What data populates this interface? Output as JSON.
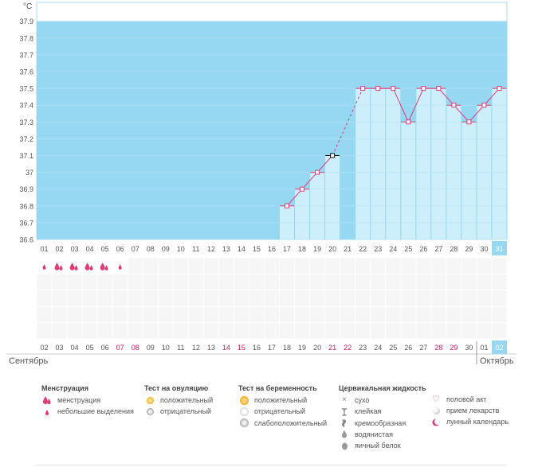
{
  "chart_data": {
    "type": "line",
    "title": "",
    "ylabel": "°C",
    "xlabel": "",
    "ylim": [
      36.6,
      38.0
    ],
    "y_ticks": [
      "37.9",
      "37.8",
      "37.7",
      "37.6",
      "37.5",
      "37.4",
      "37.3",
      "37.2",
      "37.1",
      "37",
      "36.9",
      "36.8",
      "36.7",
      "36.6"
    ],
    "cycle_days": [
      "01",
      "02",
      "03",
      "04",
      "05",
      "06",
      "07",
      "08",
      "09",
      "10",
      "11",
      "12",
      "13",
      "14",
      "15",
      "16",
      "17",
      "18",
      "19",
      "20",
      "21",
      "22",
      "23",
      "24",
      "25",
      "26",
      "27",
      "28",
      "29",
      "30",
      "31"
    ],
    "highlight_day": 31,
    "temperatures": [
      {
        "day": 17,
        "value": 36.8
      },
      {
        "day": 18,
        "value": 36.9
      },
      {
        "day": 19,
        "value": 37.0
      },
      {
        "day": 20,
        "value": 37.1
      },
      {
        "day": 22,
        "value": 37.5
      },
      {
        "day": 23,
        "value": 37.5
      },
      {
        "day": 24,
        "value": 37.5
      },
      {
        "day": 25,
        "value": 37.3
      },
      {
        "day": 26,
        "value": 37.5
      },
      {
        "day": 27,
        "value": 37.5
      },
      {
        "day": 28,
        "value": 37.4
      },
      {
        "day": 29,
        "value": 37.3
      },
      {
        "day": 30,
        "value": 37.4
      },
      {
        "day": 31,
        "value": 37.5
      }
    ],
    "marked_point_day": 20,
    "dashed_segment": [
      20,
      22
    ],
    "menstruation": [
      {
        "day": 1,
        "type": "light"
      },
      {
        "day": 2,
        "type": "heavy"
      },
      {
        "day": 3,
        "type": "heavy"
      },
      {
        "day": 4,
        "type": "heavy"
      },
      {
        "day": 5,
        "type": "heavy"
      },
      {
        "day": 6,
        "type": "light"
      }
    ],
    "calendar_dates": [
      {
        "d": "02",
        "weekend": false
      },
      {
        "d": "03",
        "weekend": false
      },
      {
        "d": "04",
        "weekend": false
      },
      {
        "d": "05",
        "weekend": false
      },
      {
        "d": "06",
        "weekend": false
      },
      {
        "d": "07",
        "weekend": true
      },
      {
        "d": "08",
        "weekend": true
      },
      {
        "d": "09",
        "weekend": false
      },
      {
        "d": "10",
        "weekend": false
      },
      {
        "d": "11",
        "weekend": false
      },
      {
        "d": "12",
        "weekend": false
      },
      {
        "d": "13",
        "weekend": false
      },
      {
        "d": "14",
        "weekend": true
      },
      {
        "d": "15",
        "weekend": true
      },
      {
        "d": "16",
        "weekend": false
      },
      {
        "d": "17",
        "weekend": false
      },
      {
        "d": "18",
        "weekend": false
      },
      {
        "d": "19",
        "weekend": false
      },
      {
        "d": "20",
        "weekend": false
      },
      {
        "d": "21",
        "weekend": true
      },
      {
        "d": "22",
        "weekend": true
      },
      {
        "d": "23",
        "weekend": false
      },
      {
        "d": "24",
        "weekend": false
      },
      {
        "d": "25",
        "weekend": false
      },
      {
        "d": "26",
        "weekend": false
      },
      {
        "d": "27",
        "weekend": false
      },
      {
        "d": "28",
        "weekend": true
      },
      {
        "d": "29",
        "weekend": true
      },
      {
        "d": "30",
        "weekend": false
      },
      {
        "d": "01",
        "weekend": false
      },
      {
        "d": "02",
        "weekend": false
      }
    ],
    "month_start": "Сентябрь",
    "month_end": "Октябрь"
  },
  "colors": {
    "background_blue": "#96d7f2",
    "bar_fill": "#cdeefb",
    "line": "#e03a78",
    "weekend_text": "#d4145a",
    "highlight_cell": "#96d7f2"
  },
  "legend": {
    "menstruation": {
      "title": "Менструация",
      "items": [
        {
          "icon": "drops-heavy-icon",
          "label": "менструация"
        },
        {
          "icon": "drop-light-icon",
          "label": "небольшие выделения"
        }
      ]
    },
    "ovulation": {
      "title": "Тест на овуляцию",
      "items": [
        {
          "icon": "positive-test-icon",
          "label": "положительный"
        },
        {
          "icon": "negative-test-icon",
          "label": "отрицательный"
        }
      ]
    },
    "pregnancy": {
      "title": "Тест на беременность",
      "items": [
        {
          "icon": "positive-test-icon",
          "label": "положительный"
        },
        {
          "icon": "negative-test-icon",
          "label": "отрицательный"
        },
        {
          "icon": "weak-positive-icon",
          "label": "слабоположительный"
        }
      ]
    },
    "cervical": {
      "title": "Цервикальная жидкость",
      "items": [
        {
          "icon": "dry-icon",
          "label": "сухо"
        },
        {
          "icon": "sticky-icon",
          "label": "клейкая"
        },
        {
          "icon": "creamy-icon",
          "label": "кремообразная"
        },
        {
          "icon": "watery-icon",
          "label": "водянистая"
        },
        {
          "icon": "egg-white-icon",
          "label": "яичный белок"
        }
      ]
    },
    "other": {
      "items": [
        {
          "icon": "heart-icon",
          "label": "половой акт"
        },
        {
          "icon": "pill-icon",
          "label": "прием лекарств"
        },
        {
          "icon": "moon-icon",
          "label": "лунный календарь"
        }
      ]
    }
  }
}
